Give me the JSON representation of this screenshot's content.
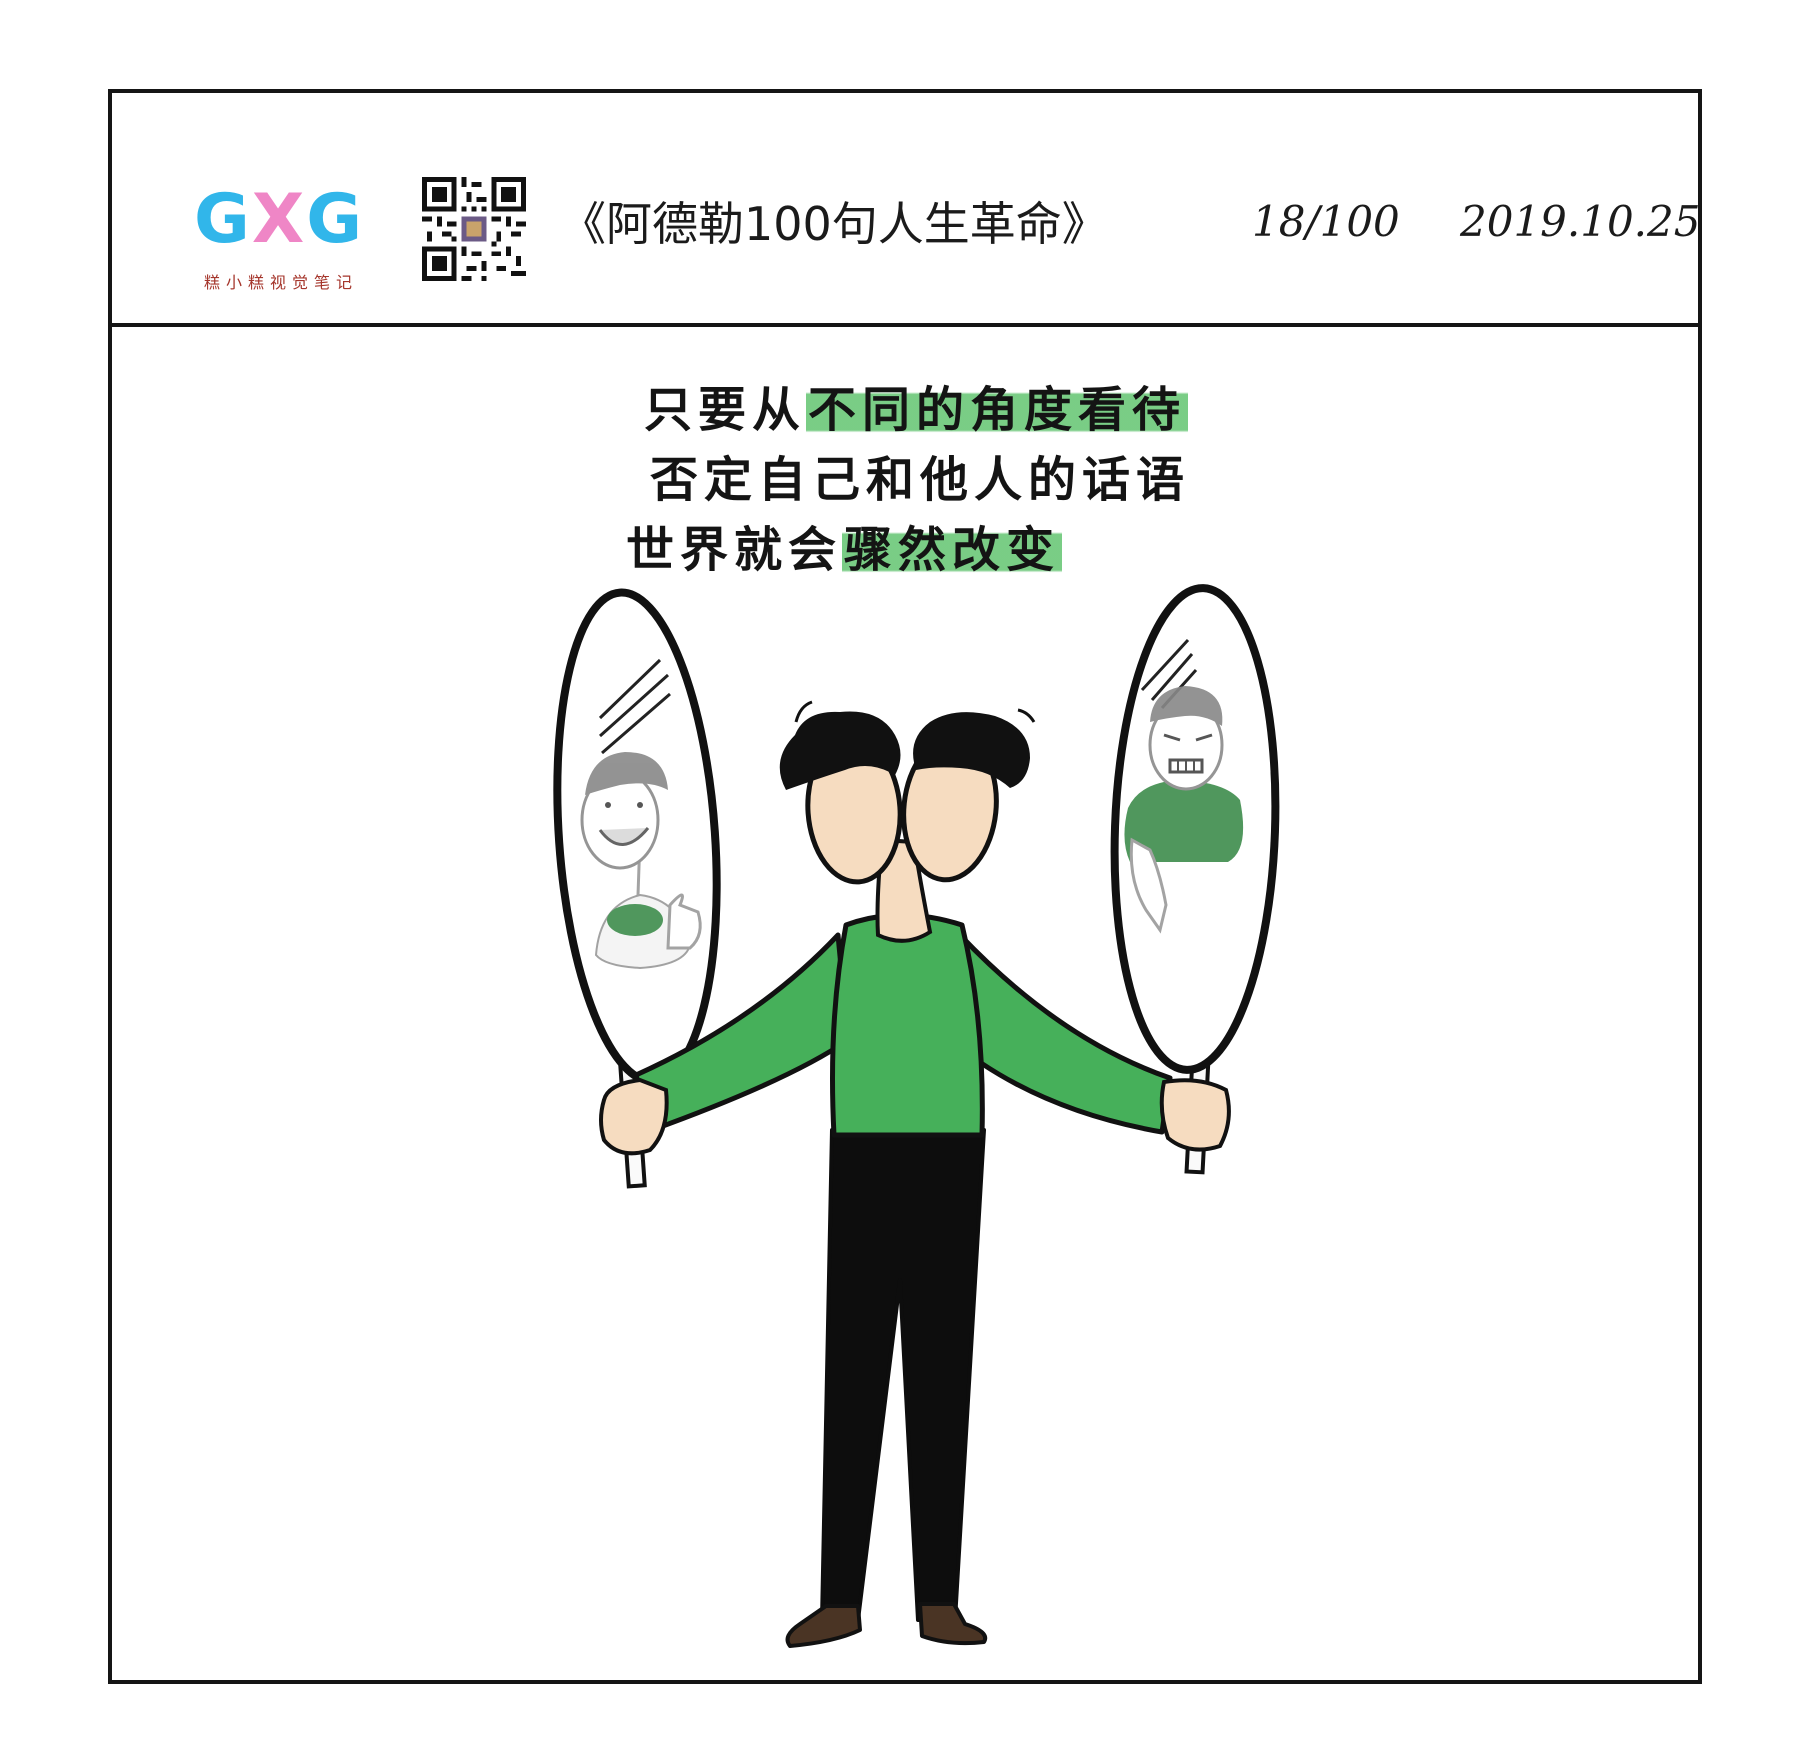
{
  "header": {
    "logo_text": {
      "g1": "G",
      "x": "X",
      "g2": "G"
    },
    "logo_subtitle": "糕小糕视觉笔记",
    "title": "《阿德勒100句人生革命》",
    "progress": "18/100",
    "date": "2019.10.25"
  },
  "quote": {
    "line1": {
      "plain": "只要从",
      "highlight": "不同的角度看待"
    },
    "line2": {
      "plain": "否定自己和他人的话语"
    },
    "line3": {
      "plain": "世界就会",
      "highlight": "骤然改变"
    }
  },
  "colors": {
    "sweater_green": "#46b05a",
    "highlight_green": "#62c470",
    "skin": "#f6dcc0",
    "hair": "#111111",
    "pants": "#0d0d0d",
    "shoes": "#4a3424",
    "logo_blue": "#31b6ea",
    "logo_pink": "#ef86c6"
  }
}
